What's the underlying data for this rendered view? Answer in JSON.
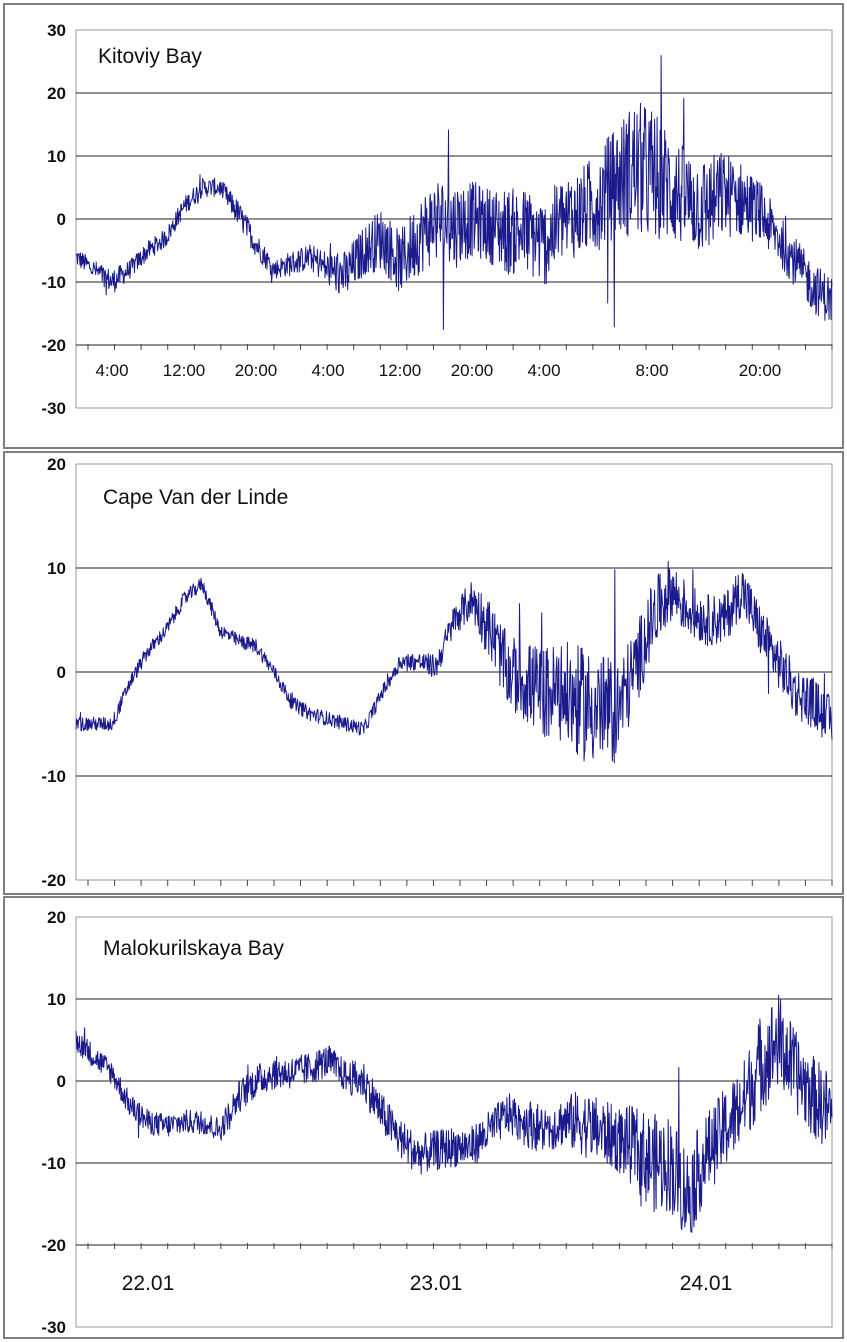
{
  "colors": {
    "series": "#1a1a8c",
    "grid": "#222222",
    "frame": "#7f7f7f"
  },
  "chart_data": [
    {
      "type": "line",
      "title": "Kitoviy Bay",
      "xlabel": "",
      "ylabel": "",
      "ylim": [
        -30,
        30
      ],
      "yticks": [
        30,
        20,
        10,
        0,
        -10,
        -20,
        -30
      ],
      "xlim": [
        0,
        84
      ],
      "x_tick_labels": [
        {
          "x": 4,
          "label": "4:00"
        },
        {
          "x": 12,
          "label": "12:00"
        },
        {
          "x": 20,
          "label": "20:00"
        },
        {
          "x": 28,
          "label": "4:00"
        },
        {
          "x": 36,
          "label": "12:00"
        },
        {
          "x": 44,
          "label": "20:00"
        },
        {
          "x": 52,
          "label": "4:00"
        },
        {
          "x": 64,
          "label": "8:00"
        },
        {
          "x": 76,
          "label": "20:00"
        }
      ],
      "grid": "horizontal",
      "series": [
        {
          "x": [
            0,
            2,
            4,
            6,
            8,
            10,
            12,
            14,
            16,
            18,
            20,
            22,
            24,
            26,
            28,
            30,
            32,
            34,
            36,
            38,
            40,
            42,
            44,
            46,
            48,
            50,
            52,
            54,
            56,
            58,
            60,
            62,
            64,
            66,
            68,
            70,
            72,
            74,
            76,
            78,
            80,
            82,
            84
          ],
          "y": [
            -6,
            -8,
            -10,
            -8,
            -5,
            -3,
            2,
            5,
            5,
            1,
            -4,
            -8,
            -7,
            -6,
            -8,
            -9,
            -5,
            -3,
            -7,
            -3,
            0,
            -1,
            0,
            -1,
            -2,
            -2,
            -4,
            0,
            1,
            3,
            6,
            8,
            7,
            5,
            3,
            2,
            4,
            3,
            1,
            -3,
            -7,
            -11,
            -13
          ],
          "noise": [
            1.5,
            1.5,
            2,
            1.5,
            1.5,
            1.5,
            1.5,
            1.5,
            1.5,
            2,
            2,
            1.5,
            2,
            2,
            3,
            4,
            4,
            5,
            5,
            6,
            7,
            7,
            6,
            6,
            7,
            7,
            7,
            7,
            7,
            8,
            9,
            11,
            11,
            9,
            8,
            8,
            7,
            6,
            5,
            4,
            4,
            4,
            4
          ]
        }
      ]
    },
    {
      "type": "line",
      "title": "Cape Van der Linde",
      "xlabel": "",
      "ylabel": "",
      "ylim": [
        -20,
        20
      ],
      "yticks": [
        20,
        10,
        0,
        -10,
        -20
      ],
      "xlim": [
        0,
        84
      ],
      "grid": "horizontal",
      "series": [
        {
          "x": [
            0,
            2,
            4,
            6,
            8,
            10,
            12,
            14,
            16,
            18,
            20,
            22,
            24,
            26,
            28,
            30,
            32,
            34,
            36,
            38,
            40,
            42,
            44,
            46,
            48,
            50,
            52,
            54,
            56,
            58,
            60,
            62,
            64,
            66,
            68,
            70,
            72,
            74,
            76,
            78,
            80,
            82,
            84
          ],
          "y": [
            -5,
            -5,
            -5,
            -1,
            2,
            4,
            7,
            8.5,
            4,
            3,
            2.5,
            0,
            -3,
            -4,
            -4.5,
            -5,
            -5.5,
            -2,
            1,
            1,
            0.5,
            5,
            7,
            4,
            0,
            -1,
            -2,
            -2,
            -3,
            -3.5,
            -4,
            0,
            5,
            8,
            6,
            5,
            5,
            8,
            4,
            1,
            -2,
            -3,
            -5
          ],
          "noise": [
            0.7,
            0.7,
            0.7,
            0.7,
            0.7,
            0.7,
            0.7,
            0.7,
            0.7,
            0.7,
            0.7,
            0.7,
            0.7,
            0.7,
            0.7,
            0.7,
            0.7,
            0.7,
            0.8,
            0.9,
            1.2,
            1.5,
            2,
            3,
            3.5,
            4,
            4.5,
            5,
            5.5,
            5.5,
            5,
            4,
            3.5,
            3,
            2.5,
            2.5,
            2.5,
            2.5,
            2.5,
            2.5,
            2.5,
            2.5,
            2.5
          ]
        }
      ]
    },
    {
      "type": "line",
      "title": "Malokurilskaya Bay",
      "xlabel": "",
      "ylabel": "",
      "ylim": [
        -30,
        20
      ],
      "yticks": [
        20,
        10,
        0,
        -10,
        -20,
        -30
      ],
      "xlim": [
        0,
        84
      ],
      "x_tick_labels": [
        {
          "x": 8,
          "label": "22.01"
        },
        {
          "x": 40,
          "label": "23.01"
        },
        {
          "x": 70,
          "label": "24.01"
        }
      ],
      "grid": "horizontal",
      "series": [
        {
          "x": [
            0,
            2,
            4,
            6,
            8,
            10,
            12,
            14,
            16,
            18,
            20,
            22,
            24,
            26,
            28,
            30,
            32,
            34,
            36,
            38,
            40,
            42,
            44,
            46,
            48,
            50,
            52,
            54,
            56,
            58,
            60,
            62,
            64,
            66,
            68,
            70,
            72,
            74,
            76,
            78,
            80,
            82,
            84
          ],
          "y": [
            5,
            3,
            1,
            -3,
            -5,
            -5.5,
            -5,
            -5,
            -6,
            -2,
            0,
            1,
            1,
            1.5,
            2.5,
            0.5,
            0,
            -4,
            -7,
            -9,
            -8.5,
            -8,
            -8,
            -6,
            -4,
            -5,
            -6,
            -5,
            -5,
            -6,
            -7,
            -8,
            -10,
            -10,
            -14,
            -9,
            -6,
            -3,
            2,
            5,
            1,
            -2,
            -4
          ],
          "noise": [
            1.5,
            1.5,
            1.5,
            1.5,
            1.5,
            1.5,
            1.5,
            1.5,
            1.5,
            2,
            2,
            2,
            2,
            2,
            2,
            2,
            2.5,
            2.5,
            2.5,
            2.5,
            2.5,
            2.5,
            2.5,
            2.5,
            2.5,
            3,
            3,
            3,
            4,
            4,
            4,
            5,
            6,
            6,
            6,
            5,
            5,
            5,
            6,
            6,
            5,
            5,
            5
          ]
        }
      ]
    }
  ]
}
